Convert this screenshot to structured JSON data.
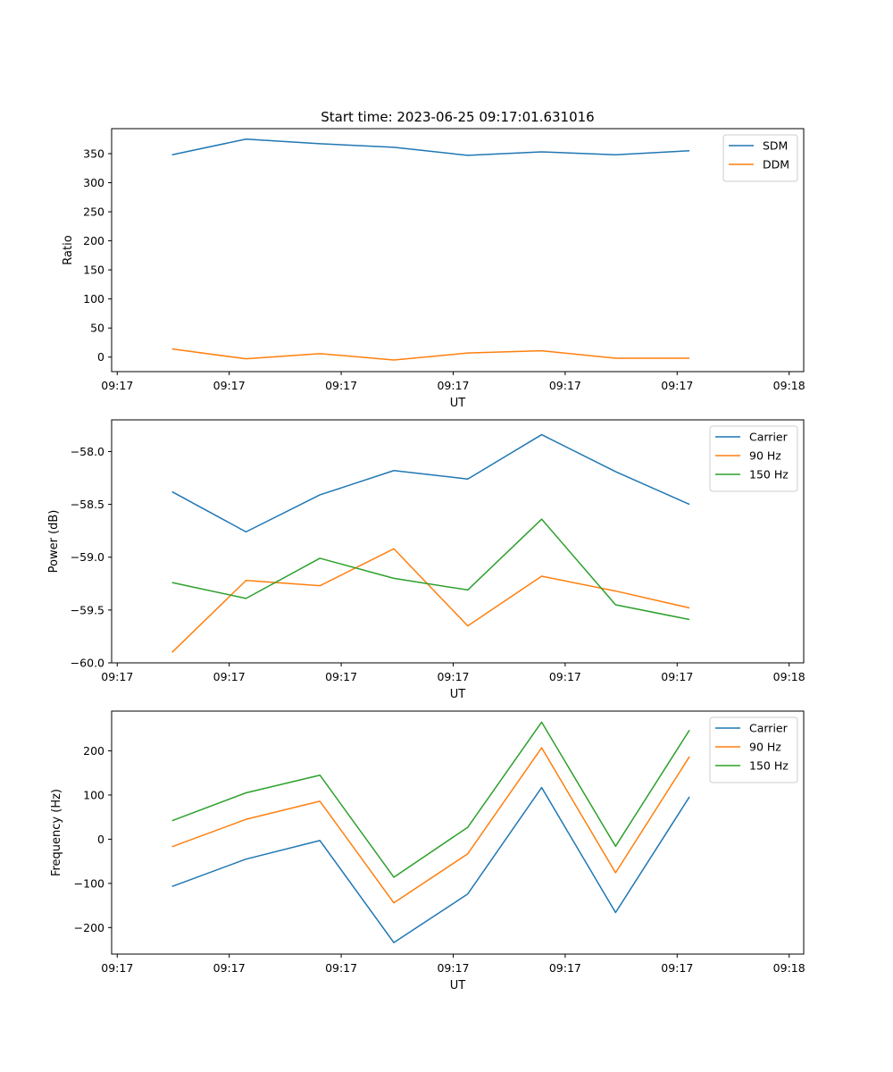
{
  "figure": {
    "title": "Start time: 2023-06-25 09:17:01.631016"
  },
  "x_tick_labels": [
    "09:17",
    "09:17",
    "09:17",
    "09:17",
    "09:17",
    "09:17",
    "09:18"
  ],
  "chart_data": [
    {
      "type": "line",
      "xlabel": "UT",
      "ylabel": "Ratio",
      "ylim": [
        -25,
        393
      ],
      "yticks": [
        0,
        50,
        100,
        150,
        200,
        250,
        300,
        350
      ],
      "x_range_seconds_from_first_tick": [
        -0.25,
        30.65
      ],
      "x": [
        2.45,
        5.75,
        9.05,
        12.35,
        15.65,
        18.95,
        22.25,
        25.55
      ],
      "legend": "top-right",
      "series": [
        {
          "name": "SDM",
          "color": "#1f77b4",
          "values": [
            348,
            375,
            367,
            361,
            347,
            353,
            348,
            355
          ]
        },
        {
          "name": "DDM",
          "color": "#ff7f0e",
          "values": [
            14,
            -3,
            6,
            -5,
            7,
            11,
            -2,
            -2
          ]
        }
      ]
    },
    {
      "type": "line",
      "xlabel": "UT",
      "ylabel": "Power (dB)",
      "ylim": [
        -60.0,
        -57.7
      ],
      "yticks": [
        -60.0,
        -59.5,
        -59.0,
        -58.5,
        -58.0
      ],
      "x_range_seconds_from_first_tick": [
        -0.25,
        30.65
      ],
      "x": [
        2.45,
        5.75,
        9.05,
        12.35,
        15.65,
        18.95,
        22.25,
        25.55
      ],
      "legend": "top-right",
      "series": [
        {
          "name": "Carrier",
          "color": "#1f77b4",
          "values": [
            -58.38,
            -58.76,
            -58.41,
            -58.18,
            -58.26,
            -57.84,
            -58.19,
            -58.5
          ]
        },
        {
          "name": "90 Hz",
          "color": "#ff7f0e",
          "values": [
            -59.9,
            -59.22,
            -59.27,
            -58.92,
            -59.65,
            -59.18,
            -59.32,
            -59.48
          ]
        },
        {
          "name": "150 Hz",
          "color": "#2ca02c",
          "values": [
            -59.24,
            -59.39,
            -59.01,
            -59.2,
            -59.31,
            -58.64,
            -59.45,
            -59.59
          ]
        }
      ]
    },
    {
      "type": "line",
      "xlabel": "UT",
      "ylabel": "Frequency (Hz)",
      "ylim": [
        -260,
        290
      ],
      "yticks": [
        -200,
        -100,
        0,
        100,
        200
      ],
      "x_range_seconds_from_first_tick": [
        -0.25,
        30.65
      ],
      "x": [
        2.45,
        5.75,
        9.05,
        12.35,
        15.65,
        18.95,
        22.25,
        25.55
      ],
      "legend": "top-right",
      "series": [
        {
          "name": "Carrier",
          "color": "#1f77b4",
          "values": [
            -107,
            -45,
            -3,
            -234,
            -124,
            117,
            -166,
            96
          ]
        },
        {
          "name": "90 Hz",
          "color": "#ff7f0e",
          "values": [
            -17,
            45,
            86,
            -144,
            -33,
            207,
            -76,
            187
          ]
        },
        {
          "name": "150 Hz",
          "color": "#2ca02c",
          "values": [
            42,
            105,
            145,
            -86,
            27,
            265,
            -16,
            247
          ]
        }
      ]
    }
  ]
}
